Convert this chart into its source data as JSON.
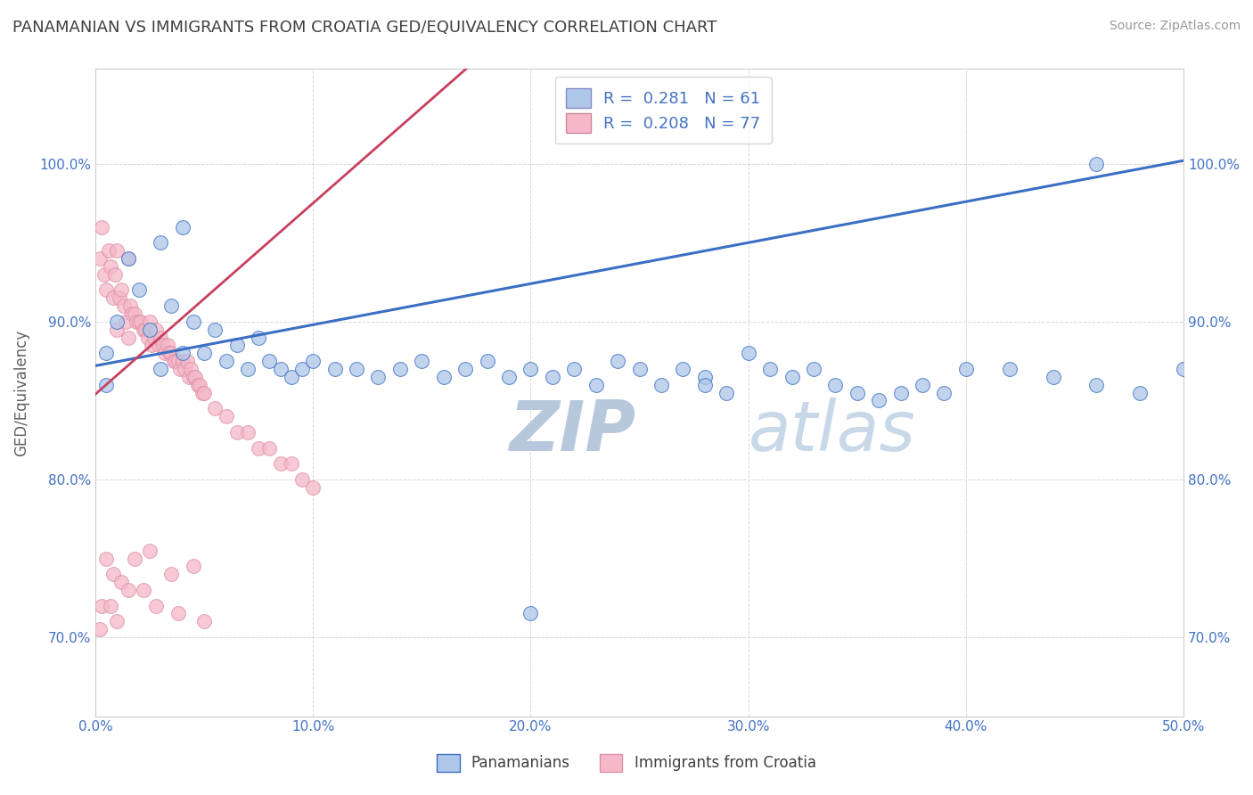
{
  "title": "PANAMANIAN VS IMMIGRANTS FROM CROATIA GED/EQUIVALENCY CORRELATION CHART",
  "source_text": "Source: ZipAtlas.com",
  "ylabel": "GED/Equivalency",
  "legend_label_blue": "Panamanians",
  "legend_label_pink": "Immigrants from Croatia",
  "R_blue": 0.281,
  "N_blue": 61,
  "R_pink": 0.208,
  "N_pink": 77,
  "xlim": [
    0.0,
    0.5
  ],
  "ylim": [
    0.65,
    1.06
  ],
  "xticks": [
    0.0,
    0.1,
    0.2,
    0.3,
    0.4,
    0.5
  ],
  "yticks": [
    0.7,
    0.8,
    0.9,
    1.0
  ],
  "ytick_labels": [
    "70.0%",
    "80.0%",
    "90.0%",
    "100.0%"
  ],
  "xtick_labels": [
    "0.0%",
    "10.0%",
    "20.0%",
    "30.0%",
    "40.0%",
    "50.0%"
  ],
  "color_blue": "#aec6e8",
  "color_pink": "#f4b8c8",
  "line_color_blue": "#3a6fc4",
  "line_color_pink": "#c84060",
  "title_color": "#404040",
  "axis_label_color": "#606060",
  "tick_color": "#4472c4",
  "grid_color": "#cccccc",
  "watermark_color": "#ccd8e8",
  "watermark_text": "ZIPatlas",
  "background_color": "#ffffff",
  "blue_line_x0": 0.0,
  "blue_line_y0": 0.872,
  "blue_line_x1": 0.5,
  "blue_line_y1": 1.002,
  "pink_line_x0": 0.0,
  "pink_line_y0": 0.854,
  "pink_line_x1": 0.1,
  "pink_line_y1": 0.975,
  "blue_x": [
    0.005,
    0.005,
    0.01,
    0.015,
    0.02,
    0.025,
    0.03,
    0.03,
    0.035,
    0.04,
    0.04,
    0.045,
    0.05,
    0.055,
    0.06,
    0.065,
    0.07,
    0.075,
    0.08,
    0.085,
    0.09,
    0.095,
    0.1,
    0.11,
    0.12,
    0.13,
    0.14,
    0.15,
    0.16,
    0.17,
    0.18,
    0.19,
    0.2,
    0.21,
    0.22,
    0.23,
    0.24,
    0.25,
    0.26,
    0.27,
    0.28,
    0.29,
    0.3,
    0.31,
    0.32,
    0.33,
    0.34,
    0.35,
    0.36,
    0.37,
    0.38,
    0.39,
    0.4,
    0.42,
    0.44,
    0.46,
    0.48,
    0.5,
    0.28,
    0.46,
    0.2
  ],
  "blue_y": [
    0.88,
    0.86,
    0.9,
    0.94,
    0.92,
    0.895,
    0.95,
    0.87,
    0.91,
    0.96,
    0.88,
    0.9,
    0.88,
    0.895,
    0.875,
    0.885,
    0.87,
    0.89,
    0.875,
    0.87,
    0.865,
    0.87,
    0.875,
    0.87,
    0.87,
    0.865,
    0.87,
    0.875,
    0.865,
    0.87,
    0.875,
    0.865,
    0.87,
    0.865,
    0.87,
    0.86,
    0.875,
    0.87,
    0.86,
    0.87,
    0.865,
    0.855,
    0.88,
    0.87,
    0.865,
    0.87,
    0.86,
    0.855,
    0.85,
    0.855,
    0.86,
    0.855,
    0.87,
    0.87,
    0.865,
    0.86,
    0.855,
    0.87,
    0.86,
    1.0,
    0.715
  ],
  "pink_x": [
    0.002,
    0.003,
    0.004,
    0.005,
    0.006,
    0.007,
    0.008,
    0.009,
    0.01,
    0.01,
    0.011,
    0.012,
    0.013,
    0.014,
    0.015,
    0.015,
    0.016,
    0.017,
    0.018,
    0.019,
    0.02,
    0.021,
    0.022,
    0.023,
    0.024,
    0.025,
    0.026,
    0.027,
    0.028,
    0.029,
    0.03,
    0.031,
    0.032,
    0.033,
    0.034,
    0.035,
    0.036,
    0.037,
    0.038,
    0.039,
    0.04,
    0.041,
    0.042,
    0.043,
    0.044,
    0.045,
    0.046,
    0.047,
    0.048,
    0.049,
    0.05,
    0.055,
    0.06,
    0.065,
    0.07,
    0.075,
    0.08,
    0.085,
    0.09,
    0.095,
    0.1,
    0.005,
    0.008,
    0.012,
    0.018,
    0.025,
    0.035,
    0.045,
    0.003,
    0.007,
    0.015,
    0.022,
    0.028,
    0.038,
    0.05,
    0.002,
    0.01
  ],
  "pink_y": [
    0.94,
    0.96,
    0.93,
    0.92,
    0.945,
    0.935,
    0.915,
    0.93,
    0.945,
    0.895,
    0.915,
    0.92,
    0.91,
    0.9,
    0.94,
    0.89,
    0.91,
    0.905,
    0.905,
    0.9,
    0.9,
    0.9,
    0.895,
    0.895,
    0.89,
    0.9,
    0.885,
    0.89,
    0.895,
    0.885,
    0.89,
    0.885,
    0.88,
    0.885,
    0.88,
    0.88,
    0.875,
    0.875,
    0.875,
    0.87,
    0.875,
    0.87,
    0.875,
    0.865,
    0.87,
    0.865,
    0.865,
    0.86,
    0.86,
    0.855,
    0.855,
    0.845,
    0.84,
    0.83,
    0.83,
    0.82,
    0.82,
    0.81,
    0.81,
    0.8,
    0.795,
    0.75,
    0.74,
    0.735,
    0.75,
    0.755,
    0.74,
    0.745,
    0.72,
    0.72,
    0.73,
    0.73,
    0.72,
    0.715,
    0.71,
    0.705,
    0.71
  ]
}
